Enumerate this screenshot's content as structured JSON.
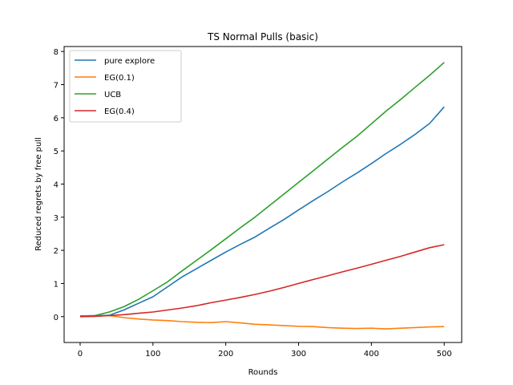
{
  "chart_data": {
    "type": "line",
    "title": "TS Normal Pulls (basic)",
    "xlabel": "Rounds",
    "ylabel": "Reduced regrets by free pull",
    "xlim": [
      -22,
      524
    ],
    "ylim": [
      -0.78,
      8.15
    ],
    "xticks": [
      0,
      100,
      200,
      300,
      400,
      500
    ],
    "yticks": [
      0,
      1,
      2,
      3,
      4,
      5,
      6,
      7,
      8
    ],
    "grid": false,
    "legend_position": "top-left",
    "series": [
      {
        "name": "pure explore",
        "color": "#1f77b4",
        "points": [
          [
            0,
            0.02
          ],
          [
            20,
            0.03
          ],
          [
            40,
            0.04
          ],
          [
            60,
            0.2
          ],
          [
            80,
            0.4
          ],
          [
            100,
            0.6
          ],
          [
            120,
            0.9
          ],
          [
            140,
            1.2
          ],
          [
            160,
            1.45
          ],
          [
            180,
            1.7
          ],
          [
            200,
            1.95
          ],
          [
            220,
            2.18
          ],
          [
            240,
            2.4
          ],
          [
            260,
            2.67
          ],
          [
            280,
            2.93
          ],
          [
            300,
            3.22
          ],
          [
            320,
            3.5
          ],
          [
            340,
            3.77
          ],
          [
            360,
            4.06
          ],
          [
            380,
            4.33
          ],
          [
            400,
            4.62
          ],
          [
            420,
            4.92
          ],
          [
            440,
            5.2
          ],
          [
            460,
            5.5
          ],
          [
            480,
            5.83
          ],
          [
            500,
            6.33
          ]
        ]
      },
      {
        "name": "EG(0.1)",
        "color": "#ff7f0e",
        "points": [
          [
            0,
            0.0
          ],
          [
            20,
            0.02
          ],
          [
            40,
            0.03
          ],
          [
            60,
            -0.03
          ],
          [
            80,
            -0.07
          ],
          [
            100,
            -0.1
          ],
          [
            120,
            -0.12
          ],
          [
            140,
            -0.15
          ],
          [
            160,
            -0.17
          ],
          [
            180,
            -0.18
          ],
          [
            200,
            -0.15
          ],
          [
            220,
            -0.19
          ],
          [
            240,
            -0.23
          ],
          [
            260,
            -0.25
          ],
          [
            280,
            -0.27
          ],
          [
            300,
            -0.29
          ],
          [
            320,
            -0.3
          ],
          [
            340,
            -0.33
          ],
          [
            360,
            -0.35
          ],
          [
            380,
            -0.36
          ],
          [
            400,
            -0.35
          ],
          [
            420,
            -0.37
          ],
          [
            440,
            -0.35
          ],
          [
            460,
            -0.33
          ],
          [
            480,
            -0.31
          ],
          [
            500,
            -0.3
          ]
        ]
      },
      {
        "name": "UCB",
        "color": "#2ca02c",
        "points": [
          [
            0,
            0.02
          ],
          [
            20,
            0.03
          ],
          [
            40,
            0.14
          ],
          [
            60,
            0.3
          ],
          [
            80,
            0.52
          ],
          [
            100,
            0.78
          ],
          [
            120,
            1.05
          ],
          [
            140,
            1.38
          ],
          [
            160,
            1.7
          ],
          [
            180,
            2.02
          ],
          [
            200,
            2.35
          ],
          [
            220,
            2.68
          ],
          [
            240,
            3.0
          ],
          [
            260,
            3.35
          ],
          [
            280,
            3.7
          ],
          [
            300,
            4.05
          ],
          [
            320,
            4.4
          ],
          [
            340,
            4.75
          ],
          [
            360,
            5.1
          ],
          [
            380,
            5.44
          ],
          [
            400,
            5.82
          ],
          [
            420,
            6.2
          ],
          [
            440,
            6.55
          ],
          [
            460,
            6.92
          ],
          [
            480,
            7.28
          ],
          [
            500,
            7.67
          ]
        ]
      },
      {
        "name": "EG(0.4)",
        "color": "#d62728",
        "points": [
          [
            0,
            0.0
          ],
          [
            20,
            0.01
          ],
          [
            40,
            0.03
          ],
          [
            60,
            0.06
          ],
          [
            80,
            0.1
          ],
          [
            100,
            0.14
          ],
          [
            120,
            0.2
          ],
          [
            140,
            0.26
          ],
          [
            160,
            0.33
          ],
          [
            180,
            0.42
          ],
          [
            200,
            0.5
          ],
          [
            220,
            0.58
          ],
          [
            240,
            0.67
          ],
          [
            260,
            0.77
          ],
          [
            280,
            0.88
          ],
          [
            300,
            1.0
          ],
          [
            320,
            1.12
          ],
          [
            340,
            1.23
          ],
          [
            360,
            1.35
          ],
          [
            380,
            1.46
          ],
          [
            400,
            1.58
          ],
          [
            420,
            1.7
          ],
          [
            440,
            1.82
          ],
          [
            460,
            1.95
          ],
          [
            480,
            2.08
          ],
          [
            500,
            2.17
          ]
        ]
      }
    ]
  }
}
